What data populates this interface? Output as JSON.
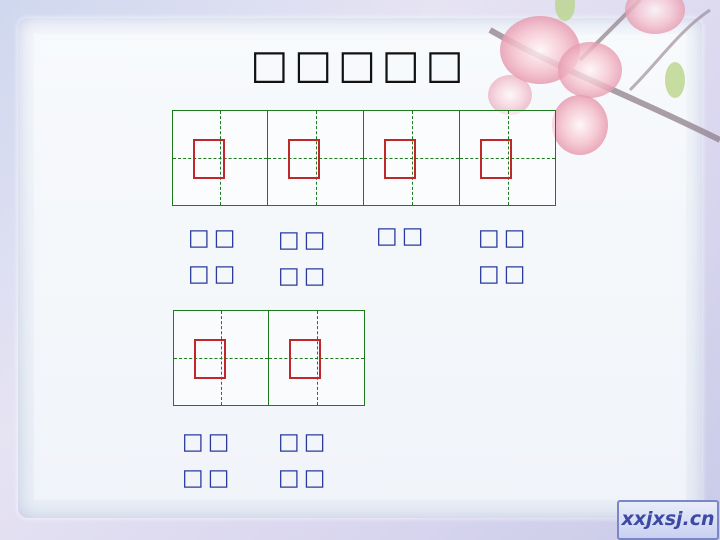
{
  "title": "□□□□□",
  "grid_rows": [
    {
      "cells": [
        "□",
        "□",
        "□",
        "□"
      ]
    },
    {
      "cells": [
        "□",
        "□"
      ]
    }
  ],
  "labels_row1": [
    {
      "line1": "□□",
      "line2": "□□"
    },
    {
      "line1": "□□",
      "line2": "□□"
    },
    {
      "line1": "□□",
      "line2": ""
    },
    {
      "line1": "□□",
      "line2": "□□"
    }
  ],
  "labels_row2": [
    {
      "line1": "□□",
      "line2": "□□"
    },
    {
      "line1": "□□",
      "line2": "□□"
    }
  ],
  "watermark": "xxjxsj.cn",
  "colors": {
    "grid": "#1d7a1d",
    "char_box": "#c0272d",
    "pinyin": "#2a3a9c"
  }
}
